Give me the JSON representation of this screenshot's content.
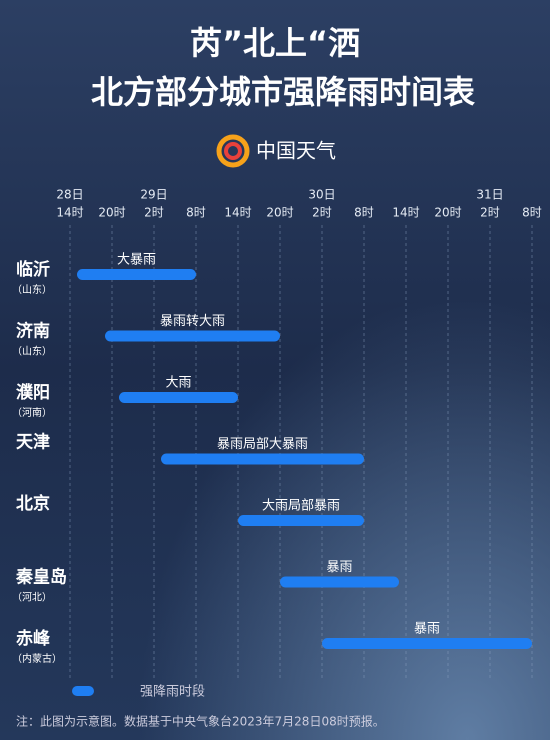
{
  "chart_data": {
    "type": "gantt",
    "title": "芮”北上“洒",
    "subtitle": "北方部分城市强降雨时间表",
    "brand": "中国天气",
    "categories": [
      "临沂",
      "济南",
      "濮阳",
      "天津",
      "北京",
      "秦皇岛",
      "赤峰"
    ],
    "sublabels": [
      "（山东）",
      "（山东）",
      "（河南）",
      null,
      null,
      "（河北）",
      "（内蒙古）"
    ],
    "start": [
      15,
      19,
      21,
      27,
      38,
      44,
      50
    ],
    "end": [
      32,
      44,
      38,
      56,
      56,
      61,
      80
    ],
    "labels": [
      "大暴雨",
      "暴雨转大雨",
      "大雨",
      "暴雨局部大暴雨",
      "大雨局部暴雨",
      "暴雨",
      "暴雨"
    ],
    "color": "#1f7ef2",
    "legend": "强降雨时段",
    "xlim": [
      12,
      81
    ],
    "xticks": [
      {
        "value": 14,
        "label": "14时"
      },
      {
        "value": 20,
        "label": "20时"
      },
      {
        "value": 26,
        "label": "2时"
      },
      {
        "value": 32,
        "label": "8时"
      },
      {
        "value": 38,
        "label": "14时"
      },
      {
        "value": 44,
        "label": "20时"
      },
      {
        "value": 50,
        "label": "2时"
      },
      {
        "value": 56,
        "label": "8时"
      },
      {
        "value": 62,
        "label": "14时"
      },
      {
        "value": 68,
        "label": "20时"
      },
      {
        "value": 74,
        "label": "2时"
      },
      {
        "value": 80,
        "label": "8时"
      }
    ],
    "day_ticks": [
      {
        "value": 14,
        "label": "28日"
      },
      {
        "value": 26,
        "label": "29日"
      },
      {
        "value": 50,
        "label": "30日"
      },
      {
        "value": 74,
        "label": "31日"
      }
    ],
    "grid": true,
    "note": "注：此图为示意图。数据基于中央气象台2023年7月28日08时预报。"
  }
}
